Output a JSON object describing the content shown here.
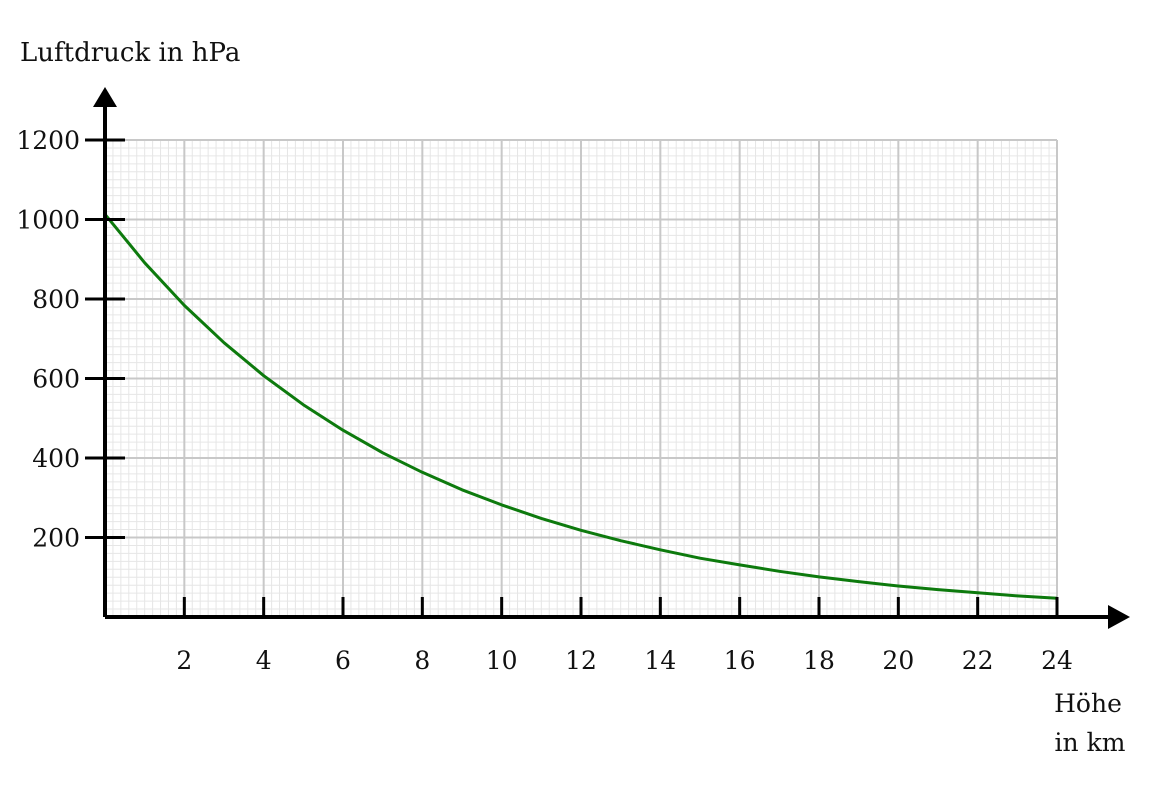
{
  "chart_data": {
    "type": "line",
    "title": "",
    "ylabel": "Luftdruck in hPa",
    "xlabel": [
      "Höhe",
      "in km"
    ],
    "xlim": [
      0,
      24
    ],
    "ylim": [
      0,
      1200
    ],
    "x_ticks": [
      2,
      4,
      6,
      8,
      10,
      12,
      14,
      16,
      18,
      20,
      22,
      24
    ],
    "x_tick_labels": [
      "2",
      "4",
      "6",
      "8",
      "10",
      "12",
      "14",
      "16",
      "18",
      "20",
      "22",
      "24"
    ],
    "y_ticks": [
      200,
      400,
      600,
      800,
      1000,
      1200
    ],
    "y_tick_labels": [
      "200",
      "400",
      "600",
      "800",
      "1000",
      "1200"
    ],
    "grid": true,
    "legend": "none",
    "colors": {
      "series": "#0d7a0d",
      "axis": "#000000",
      "grid_major": "#c8c8c8",
      "grid_minor": "#e6e6e6"
    },
    "series": [
      {
        "x": [
          0,
          1,
          2,
          3,
          4,
          5,
          6,
          7,
          8,
          9,
          10,
          11,
          12,
          13,
          14,
          15,
          16,
          17,
          18,
          19,
          20,
          21,
          22,
          23,
          24
        ],
        "y": [
          1013,
          891,
          784,
          690,
          607,
          534,
          470,
          413,
          364,
          320,
          282,
          248,
          218,
          192,
          169,
          148,
          131,
          115,
          101,
          89,
          78,
          69,
          61,
          53,
          47
        ]
      }
    ]
  }
}
